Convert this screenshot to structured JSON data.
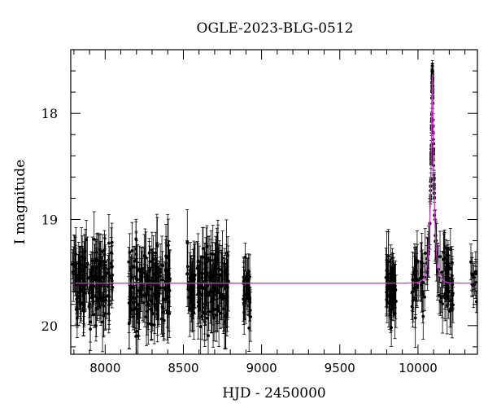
{
  "chart_data": {
    "type": "scatter",
    "title": "OGLE-2023-BLG-0512",
    "xlabel": "HJD - 2450000",
    "ylabel": "I magnitude",
    "xlim": [
      7780,
      10380
    ],
    "ylim": [
      20.27,
      17.4
    ],
    "y_axis_inverted": true,
    "x_ticks": [
      8000,
      8500,
      9000,
      9500,
      10000
    ],
    "y_ticks": [
      18,
      19,
      20
    ],
    "grid": false,
    "baseline_magnitude": 19.6,
    "colors": {
      "data": "#000000",
      "model": "#cc33cc",
      "axes": "#000000"
    },
    "series": [
      {
        "role": "observations",
        "marker": "filled-circle-with-errorbars",
        "seasons": [
          {
            "x_range": [
              7790,
              8050
            ],
            "mag_mean": 19.6,
            "mag_scatter": 0.17,
            "typical_error": 0.2,
            "approx_points": 160
          },
          {
            "x_range": [
              8150,
              8420
            ],
            "mag_mean": 19.62,
            "mag_scatter": 0.18,
            "typical_error": 0.22,
            "approx_points": 160
          },
          {
            "x_range": [
              8520,
              8790
            ],
            "mag_mean": 19.62,
            "mag_scatter": 0.19,
            "typical_error": 0.24,
            "approx_points": 160
          },
          {
            "x_range": [
              8880,
              8930
            ],
            "mag_mean": 19.65,
            "mag_scatter": 0.14,
            "typical_error": 0.18,
            "approx_points": 35
          },
          {
            "x_range": [
              9795,
              9860
            ],
            "mag_mean": 19.6,
            "mag_scatter": 0.15,
            "typical_error": 0.2,
            "approx_points": 50
          },
          {
            "x_range": [
              9960,
              10230
            ],
            "mag_mean": 19.62,
            "mag_scatter": 0.16,
            "typical_error": 0.2,
            "approx_points": 120
          },
          {
            "x_range": [
              10335,
              10375
            ],
            "mag_mean": 19.55,
            "mag_scatter": 0.12,
            "typical_error": 0.15,
            "approx_points": 12
          }
        ],
        "event": {
          "t_peak": 10092,
          "peak_mag": 17.8,
          "baseline_mag": 19.6,
          "u0": 0.165,
          "tE": 25
        }
      },
      {
        "role": "model",
        "line": "point-lens fit",
        "baseline_mag": 19.6,
        "t0": 10092,
        "u0": 0.165,
        "tE": 25
      }
    ]
  }
}
